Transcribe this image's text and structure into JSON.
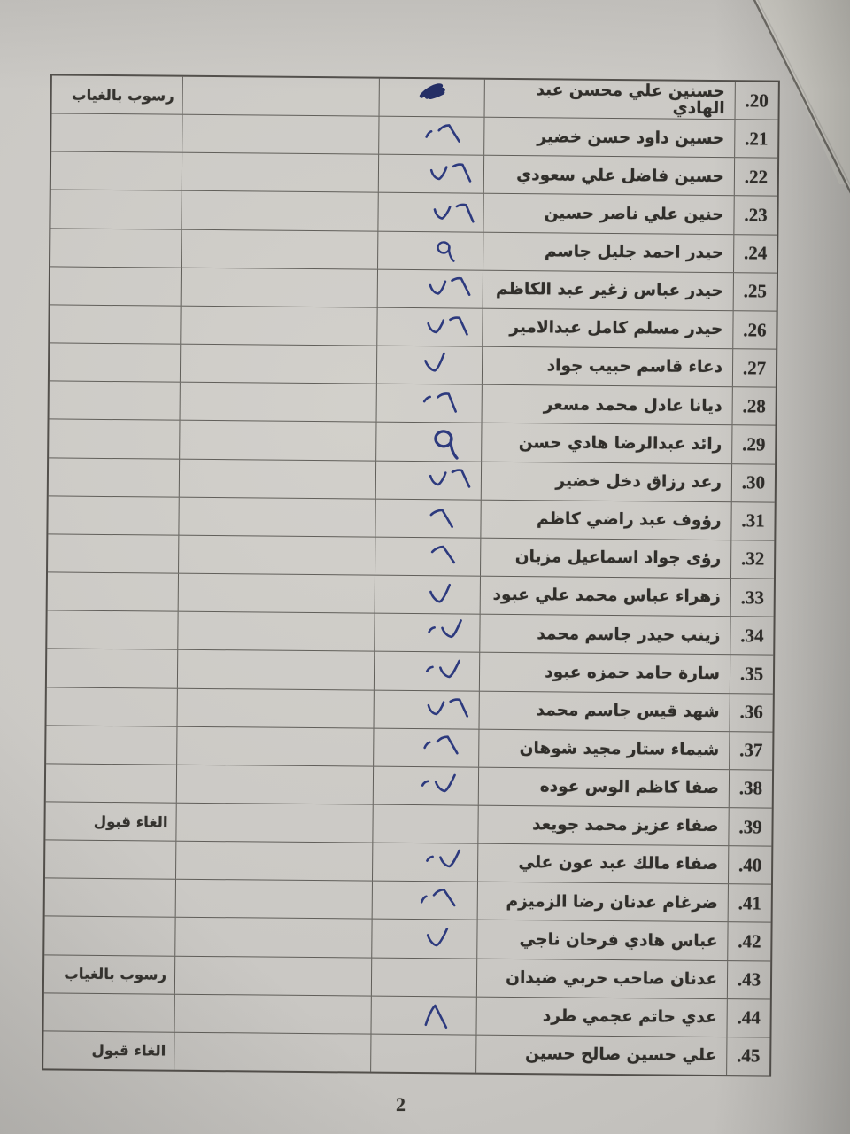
{
  "page_number": "2",
  "colors": {
    "paper": "#cac8c4",
    "under_sheet": "#dbd9d3",
    "table_line": "#4e4b46",
    "text_ink": "#312f2b",
    "pen_blue": "#2d3a7e",
    "pen_scribble": "#252f66"
  },
  "notes_used": [
    "رسوب بالغياب",
    "الغاء قبول"
  ],
  "table": {
    "rows": [
      {
        "no": "20.",
        "name": "حسنين علي محسن عبد الهادي",
        "note": "رسوب بالغياب",
        "mark": "signature-scribble"
      },
      {
        "no": "21.",
        "name": "حسين داود حسن خضير",
        "note": "",
        "mark": "tick-seven"
      },
      {
        "no": "22.",
        "name": "حسين فاضل علي سعودي",
        "note": "",
        "mark": "check-seven"
      },
      {
        "no": "23.",
        "name": "حنين علي ناصر حسين",
        "note": "",
        "mark": "check-seven"
      },
      {
        "no": "24.",
        "name": "حيدر احمد جليل جاسم",
        "note": "",
        "mark": "nine-loop"
      },
      {
        "no": "25.",
        "name": "حيدر عباس زغير عبد الكاظم",
        "note": "",
        "mark": "check-seven"
      },
      {
        "no": "26.",
        "name": "حيدر مسلم كامل عبدالامير",
        "note": "",
        "mark": "check-seven"
      },
      {
        "no": "27.",
        "name": "دعاء قاسم حبيب جواد",
        "note": "",
        "mark": "check"
      },
      {
        "no": "28.",
        "name": "ديانا عادل محمد مسعر",
        "note": "",
        "mark": "tick-seven"
      },
      {
        "no": "29.",
        "name": "رائد عبدالرضا هادي حسن",
        "note": "",
        "mark": "nine-loop"
      },
      {
        "no": "30.",
        "name": "رعد رزاق دخل خضير",
        "note": "",
        "mark": "check-seven"
      },
      {
        "no": "31.",
        "name": "رؤوف عبد راضي كاظم",
        "note": "",
        "mark": "seven"
      },
      {
        "no": "32.",
        "name": "رؤى جواد اسماعيل مزبان",
        "note": "",
        "mark": "seven"
      },
      {
        "no": "33.",
        "name": "زهراء عباس محمد علي عبود",
        "note": "",
        "mark": "check"
      },
      {
        "no": "34.",
        "name": "زينب حيدر جاسم محمد",
        "note": "",
        "mark": "tick-check"
      },
      {
        "no": "35.",
        "name": "سارة حامد حمزه عبود",
        "note": "",
        "mark": "tick-check"
      },
      {
        "no": "36.",
        "name": "شهد قيس جاسم محمد",
        "note": "",
        "mark": "check-seven"
      },
      {
        "no": "37.",
        "name": "شيماء ستار مجيد شوهان",
        "note": "",
        "mark": "tick-seven"
      },
      {
        "no": "38.",
        "name": "صفا كاظم الوس عوده",
        "note": "",
        "mark": "tick-check"
      },
      {
        "no": "39.",
        "name": "صفاء عزيز محمد جويعد",
        "note": "الغاء قبول",
        "mark": "none"
      },
      {
        "no": "40.",
        "name": "صفاء مالك عبد عون علي",
        "note": "",
        "mark": "tick-check"
      },
      {
        "no": "41.",
        "name": "ضرغام عدنان رضا الزميزم",
        "note": "",
        "mark": "tick-seven"
      },
      {
        "no": "42.",
        "name": "عباس هادي فرحان ناجي",
        "note": "",
        "mark": "check"
      },
      {
        "no": "43.",
        "name": "عدنان صاحب حربي ضيدان",
        "note": "رسوب بالغياب",
        "mark": "none"
      },
      {
        "no": "44.",
        "name": "عدي حاتم عجمي طرد",
        "note": "",
        "mark": "lambda"
      },
      {
        "no": "45.",
        "name": "علي حسين صالح حسين",
        "note": "الغاء قبول",
        "mark": "none"
      }
    ]
  }
}
